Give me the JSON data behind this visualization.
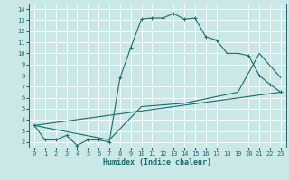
{
  "xlabel": "Humidex (Indice chaleur)",
  "bg_color": "#cbe8e8",
  "line_color": "#1a6b6b",
  "grid_color": "#ffffff",
  "xlim": [
    -0.5,
    23.5
  ],
  "ylim": [
    1.5,
    14.5
  ],
  "xticks": [
    0,
    1,
    2,
    3,
    4,
    5,
    6,
    7,
    8,
    9,
    10,
    11,
    12,
    13,
    14,
    15,
    16,
    17,
    18,
    19,
    20,
    21,
    22,
    23
  ],
  "yticks": [
    2,
    3,
    4,
    5,
    6,
    7,
    8,
    9,
    10,
    11,
    12,
    13,
    14
  ],
  "line1_x": [
    0,
    1,
    2,
    3,
    4,
    5,
    6,
    7,
    8,
    9,
    10,
    11,
    12,
    13,
    14,
    15,
    16,
    17,
    18,
    19,
    20,
    21,
    22,
    23
  ],
  "line1_y": [
    3.5,
    2.2,
    2.2,
    2.6,
    1.7,
    2.2,
    2.2,
    2.0,
    7.8,
    10.5,
    13.1,
    13.2,
    13.2,
    13.6,
    13.1,
    13.2,
    11.5,
    11.2,
    10.0,
    10.0,
    9.8,
    8.0,
    7.2,
    6.5
  ],
  "line2_x": [
    0,
    23
  ],
  "line2_y": [
    3.5,
    6.5
  ],
  "line3_x": [
    0,
    7,
    10,
    14,
    19,
    21,
    23
  ],
  "line3_y": [
    3.5,
    2.2,
    5.2,
    5.5,
    6.5,
    10.0,
    7.8
  ]
}
